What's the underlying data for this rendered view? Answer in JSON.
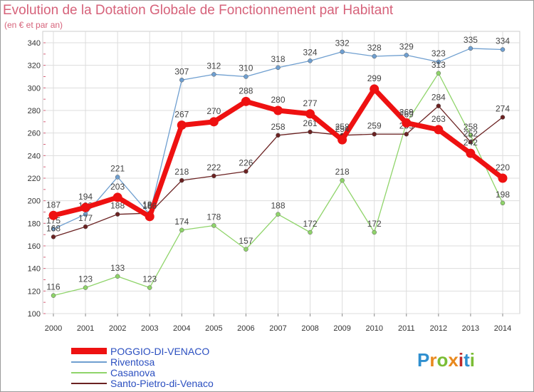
{
  "chart_data": {
    "type": "line",
    "title": "Evolution de la Dotation Globale de Fonctionnement par Habitant",
    "subtitle": "(en € et par an)",
    "x": [
      "2000",
      "2001",
      "2002",
      "2003",
      "2004",
      "2005",
      "2006",
      "2007",
      "2008",
      "2009",
      "2010",
      "2011",
      "2012",
      "2013",
      "2014"
    ],
    "ylim": [
      100,
      340
    ],
    "yticks": [
      100,
      120,
      140,
      160,
      180,
      200,
      220,
      240,
      260,
      280,
      300,
      320,
      340
    ],
    "grid": true,
    "legend_position": "bottom-left",
    "series": [
      {
        "name": "POGGIO-DI-VENACO",
        "color": "#ee1111",
        "values": [
          187,
          194,
          203,
          186,
          267,
          270,
          288,
          280,
          277,
          254,
          299,
          269,
          263,
          242,
          220
        ],
        "labels": [
          "187",
          "194",
          "203",
          "186",
          "267",
          "270",
          "288",
          "280",
          "277",
          "254",
          "299",
          "269",
          "263",
          "242",
          "220"
        ]
      },
      {
        "name": "Riventosa",
        "color": "#6f9fd0",
        "values": [
          175,
          188,
          221,
          188,
          307,
          312,
          310,
          318,
          324,
          332,
          328,
          329,
          323,
          335,
          334
        ],
        "labels": [
          "175",
          "188",
          "221",
          "188",
          "307",
          "312",
          "310",
          "318",
          "324",
          "332",
          "328",
          "329",
          "323",
          "335",
          "334"
        ]
      },
      {
        "name": "Casanova",
        "color": "#8fd46a",
        "values": [
          116,
          123,
          133,
          123,
          174,
          178,
          157,
          188,
          172,
          218,
          172,
          269,
          313,
          258,
          198
        ],
        "labels": [
          "116",
          "123",
          "133",
          "123",
          "174",
          "178",
          "157",
          "188",
          "172",
          "218",
          "172",
          "269",
          "313",
          "258",
          "198"
        ]
      },
      {
        "name": "Santo-Pietro-di-Venaco",
        "color": "#6b2222",
        "values": [
          168,
          177,
          188,
          189,
          218,
          222,
          226,
          258,
          261,
          258,
          259,
          259,
          284,
          252,
          274
        ],
        "labels": [
          "168",
          "177",
          "188",
          "189",
          "218",
          "222",
          "226",
          "258",
          "261",
          "258",
          "259",
          "259",
          "284",
          "252",
          "274"
        ]
      }
    ]
  },
  "logo": {
    "text": "Proxiti",
    "colors": [
      "#2f8fcf",
      "#e8891e",
      "#7bbd35",
      "#e8891e",
      "#c02a2a",
      "#2f8fcf",
      "#7bbd35"
    ]
  }
}
